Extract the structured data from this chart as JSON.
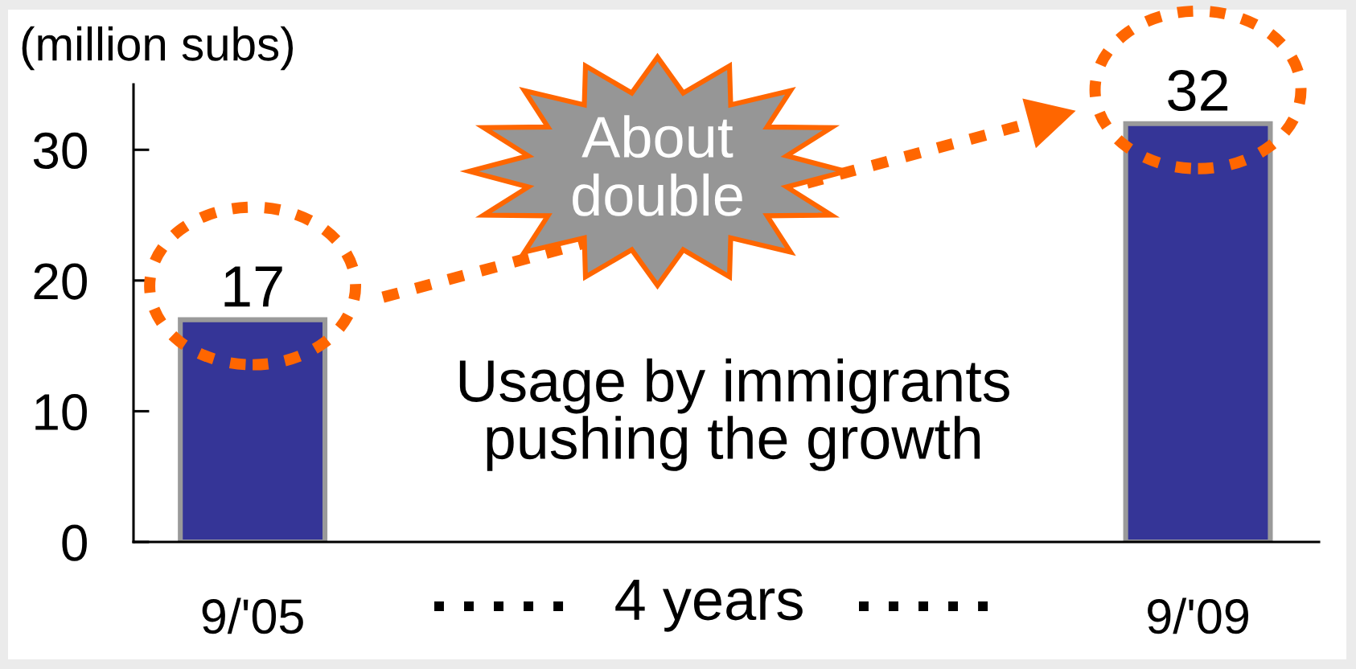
{
  "chart_data": {
    "type": "bar",
    "ylabel": "(million subs)",
    "categories": [
      "9/'05",
      "9/'09"
    ],
    "values": [
      17,
      32
    ],
    "color": "#353597",
    "ylim": [
      0,
      35
    ],
    "yticks": [
      0,
      10,
      20,
      30
    ],
    "data_labels": true,
    "annotations": [
      "About\ndouble",
      "Usage by immigrants\npushing the growth",
      "4 years"
    ]
  }
}
